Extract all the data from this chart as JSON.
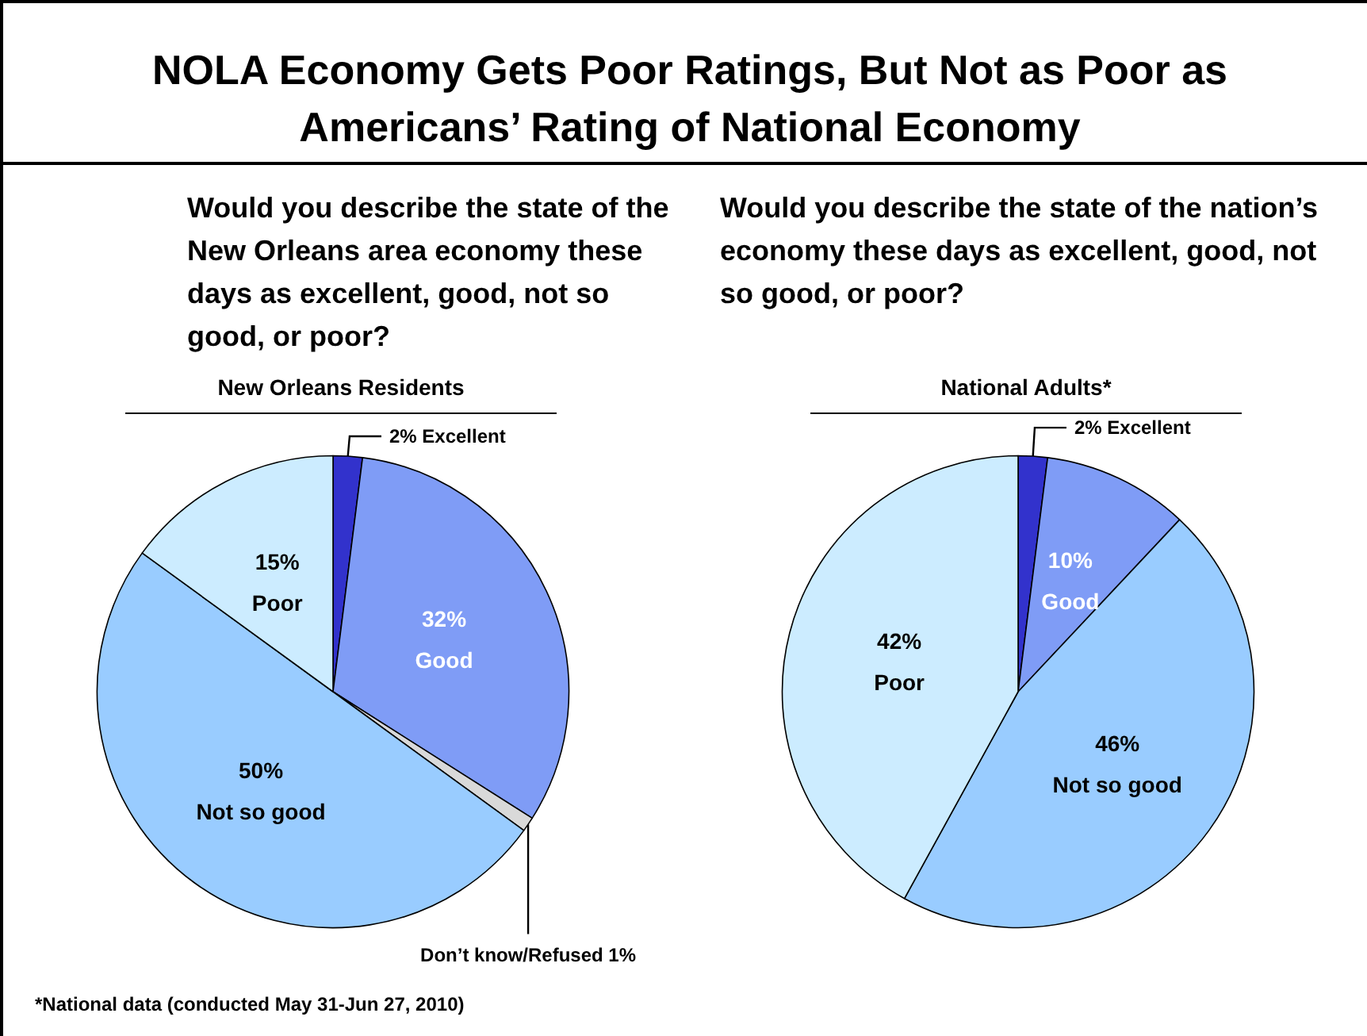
{
  "chart_data": [
    {
      "type": "pie",
      "title": "New Orleans Residents",
      "subtitle": "Would you describe the state of the New Orleans area economy these days as excellent, good, not so good, or poor?",
      "annotations": [
        "NOLA Economy Gets Poor Ratings, But Not as Poor as Americans’ Rating of National Economy"
      ],
      "categories": [
        "Excellent",
        "Good",
        "Don’t know/Refused",
        "Not so good",
        "Poor"
      ],
      "values": [
        2,
        32,
        1,
        50,
        15
      ],
      "colors": [
        "#3232cc",
        "#7f9cf6",
        "#d9d9d9",
        "#99ccff",
        "#ccecff"
      ],
      "value_labels": [
        "2%",
        "32%",
        "1%",
        "50%",
        "15%"
      ]
    },
    {
      "type": "pie",
      "title": "National Adults*",
      "subtitle": "Would you describe the state of the nation’s economy these days as excellent, good, not so good, or poor?",
      "annotations": [
        "*National data (conducted May 31-Jun 27, 2010)"
      ],
      "categories": [
        "Excellent",
        "Good",
        "Not so good",
        "Poor"
      ],
      "values": [
        2,
        10,
        46,
        42
      ],
      "colors": [
        "#3232cc",
        "#7f9cf6",
        "#99ccff",
        "#ccecff"
      ],
      "value_labels": [
        "2%",
        "10%",
        "46%",
        "42%"
      ]
    }
  ]
}
